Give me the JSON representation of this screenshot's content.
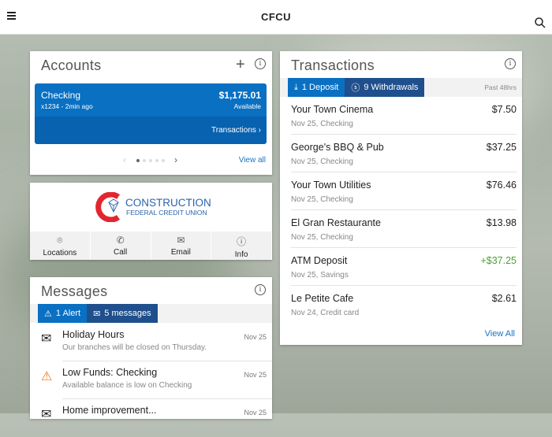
{
  "header": {
    "title": "CFCU",
    "menu_icon": "hamburger-icon",
    "search_icon": "search-icon"
  },
  "accounts": {
    "title": "Accounts",
    "account": {
      "name": "Checking",
      "subtitle": "x1234 - 2min ago",
      "balance": "$1,175.01",
      "balance_label": "Available",
      "link": "Transactions"
    },
    "view_all": "View all",
    "page_index": 1,
    "page_count": 5
  },
  "brand": {
    "logo_line1": "CONSTRUCTION",
    "logo_line2": "FEDERAL CREDIT UNION",
    "actions": [
      "Locations",
      "Call",
      "Email",
      "Info"
    ]
  },
  "messages": {
    "title": "Messages",
    "tabs": [
      "1 Alert",
      "5 messages"
    ],
    "items": [
      {
        "title": "Holiday Hours",
        "body": "Our branches will be closed on Thursday.",
        "date": "Nov 25",
        "icon": "mail"
      },
      {
        "title": "Low Funds: Checking",
        "body": "Available balance is low on Checking",
        "date": "Nov 25",
        "icon": "warning"
      },
      {
        "title": "Home improvement...",
        "body": "",
        "date": "Nov 25",
        "icon": "mail"
      }
    ]
  },
  "transactions": {
    "title": "Transactions",
    "tabs": [
      "1 Deposit",
      "9 Withdrawals"
    ],
    "period": "Past 48hrs",
    "items": [
      {
        "name": "Your Town Cinema",
        "detail": "Nov 25, Checking",
        "amount": "$7.50"
      },
      {
        "name": "George's BBQ & Pub",
        "detail": "Nov 25, Checking",
        "amount": "$37.25"
      },
      {
        "name": "Your Town Utilities",
        "detail": "Nov 25, Checking",
        "amount": "$76.46"
      },
      {
        "name": "El Gran Restaurante",
        "detail": "Nov 25, Checking",
        "amount": "$13.98"
      },
      {
        "name": "ATM Deposit",
        "detail": "Nov 25, Savings",
        "amount": "+$37.25"
      },
      {
        "name": "Le Petite Cafe",
        "detail": "Nov 24, Credit card",
        "amount": "$2.61"
      }
    ],
    "view_all": "View All"
  },
  "colors": {
    "primary": "#0a70c2",
    "dark_tab": "#1f4f8c",
    "deposit": "#4aa03a",
    "alert": "#f07a1a",
    "logo_red": "#e3252f"
  }
}
